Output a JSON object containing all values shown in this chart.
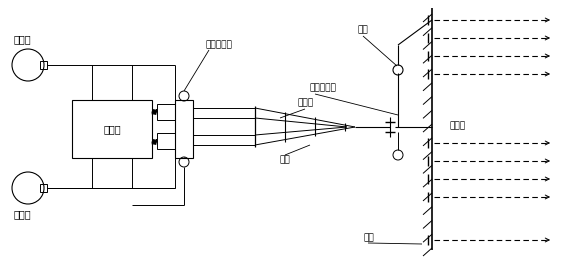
{
  "bg_color": "#ffffff",
  "labels": {
    "mixer": "搞拌机",
    "storage": "蓄浆池",
    "pump": "注浆泵",
    "pump_pressure": "泵口压力表",
    "hole_pressure": "孔口压力表",
    "mixer_device": "混合器",
    "pipeline": "管路",
    "ball_valve": "球阀",
    "small_pipe": "小导管",
    "stratum": "地层"
  },
  "figsize": [
    5.62,
    2.58
  ],
  "dpi": 100
}
